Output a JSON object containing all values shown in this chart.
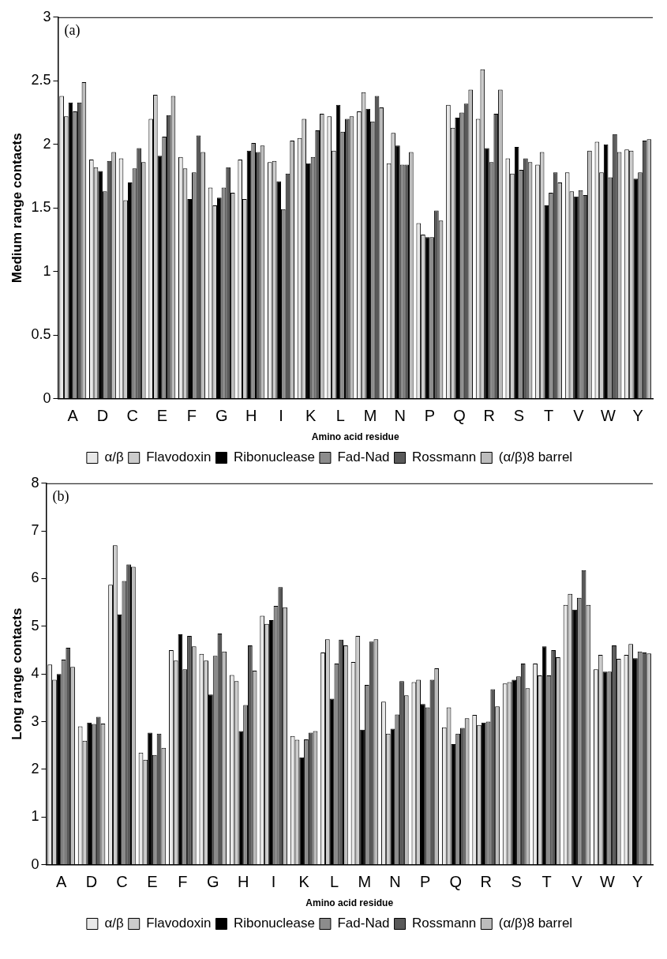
{
  "chart_data": [
    {
      "type": "bar",
      "xlabel": "Amino acid residue",
      "ylabel": "Medium range contacts",
      "annotations": [
        "(a)"
      ],
      "categories": [
        "A",
        "D",
        "C",
        "E",
        "F",
        "G",
        "H",
        "I",
        "K",
        "L",
        "M",
        "N",
        "P",
        "Q",
        "R",
        "S",
        "T",
        "V",
        "W",
        "Y"
      ],
      "ylim": [
        0,
        3
      ],
      "yticks": [
        0,
        0.5,
        1,
        1.5,
        2,
        2.5,
        3
      ],
      "grid": false,
      "legend": "bottom",
      "series": [
        {
          "name": "α/β",
          "color": "#e8e8e8",
          "values": [
            2.38,
            1.88,
            1.89,
            2.2,
            1.9,
            1.66,
            1.88,
            1.86,
            2.05,
            2.22,
            2.26,
            1.85,
            1.38,
            2.31,
            2.2,
            1.89,
            1.84,
            1.78,
            2.02,
            1.96
          ]
        },
        {
          "name": "Flavodoxin",
          "color": "#cccccc",
          "values": [
            2.22,
            1.82,
            1.56,
            2.39,
            1.81,
            1.52,
            1.57,
            1.87,
            2.2,
            1.95,
            2.41,
            2.09,
            1.29,
            2.13,
            2.59,
            1.77,
            1.94,
            1.63,
            1.78,
            1.95
          ]
        },
        {
          "name": "Ribonuclease",
          "color": "#000000",
          "values": [
            2.33,
            1.79,
            1.7,
            1.91,
            1.57,
            1.58,
            1.95,
            1.71,
            1.85,
            2.31,
            2.28,
            1.99,
            1.27,
            2.21,
            1.97,
            1.98,
            1.52,
            1.59,
            2.0,
            1.73
          ]
        },
        {
          "name": "Fad-Nad",
          "color": "#8c8c8c",
          "values": [
            2.26,
            1.63,
            1.81,
            2.06,
            1.78,
            1.66,
            2.01,
            1.49,
            1.9,
            2.1,
            2.18,
            1.84,
            1.27,
            2.25,
            1.86,
            1.8,
            1.62,
            1.64,
            1.74,
            1.78
          ]
        },
        {
          "name": "Rossmann",
          "color": "#595959",
          "values": [
            2.33,
            1.87,
            1.97,
            2.23,
            2.07,
            1.82,
            1.94,
            1.77,
            2.11,
            2.2,
            2.38,
            1.84,
            1.48,
            2.32,
            2.24,
            1.89,
            1.78,
            1.6,
            2.08,
            2.03
          ]
        },
        {
          "name": "(α/β)8 barrel",
          "color": "#bdbdbd",
          "values": [
            2.49,
            1.94,
            1.86,
            2.38,
            1.94,
            1.62,
            1.99,
            2.03,
            2.24,
            2.22,
            2.29,
            1.94,
            1.4,
            2.43,
            2.43,
            1.86,
            1.7,
            1.95,
            1.94,
            2.04
          ]
        }
      ]
    },
    {
      "type": "bar",
      "xlabel": "Amino acid residue",
      "ylabel": "Long range contacts",
      "annotations": [
        "(b)"
      ],
      "categories": [
        "A",
        "D",
        "C",
        "E",
        "F",
        "G",
        "H",
        "I",
        "K",
        "L",
        "M",
        "N",
        "P",
        "Q",
        "R",
        "S",
        "T",
        "V",
        "W",
        "Y"
      ],
      "ylim": [
        0,
        8
      ],
      "yticks": [
        0,
        1,
        2,
        3,
        4,
        5,
        6,
        7,
        8
      ],
      "grid": false,
      "legend": "bottom",
      "series": [
        {
          "name": "α/β",
          "color": "#e8e8e8",
          "values": [
            4.2,
            2.9,
            5.87,
            2.35,
            4.5,
            4.42,
            3.98,
            5.22,
            2.7,
            4.45,
            4.25,
            3.42,
            3.83,
            2.88,
            3.14,
            3.8,
            4.22,
            5.45,
            4.1,
            4.4
          ]
        },
        {
          "name": "Flavodoxin",
          "color": "#cccccc",
          "values": [
            3.88,
            2.6,
            6.7,
            2.2,
            4.28,
            4.28,
            3.85,
            5.05,
            2.62,
            4.73,
            4.8,
            2.75,
            3.88,
            3.3,
            2.93,
            3.83,
            3.97,
            5.68,
            4.4,
            4.63
          ]
        },
        {
          "name": "Ribonuclease",
          "color": "#000000",
          "values": [
            4.0,
            2.98,
            5.25,
            2.77,
            4.83,
            3.57,
            2.8,
            5.13,
            2.25,
            3.48,
            2.83,
            2.85,
            3.37,
            2.53,
            2.98,
            3.88,
            4.58,
            5.35,
            4.05,
            4.33
          ]
        },
        {
          "name": "Fad-Nad",
          "color": "#8c8c8c",
          "values": [
            4.3,
            2.95,
            5.95,
            2.3,
            4.1,
            4.38,
            3.35,
            5.43,
            2.63,
            4.22,
            3.77,
            3.15,
            3.3,
            2.75,
            3.0,
            3.95,
            3.97,
            5.6,
            4.05,
            4.47
          ]
        },
        {
          "name": "Rossmann",
          "color": "#595959",
          "values": [
            4.55,
            3.1,
            6.3,
            2.75,
            4.8,
            4.85,
            4.6,
            5.82,
            2.77,
            4.72,
            4.68,
            3.85,
            3.88,
            2.87,
            3.68,
            4.22,
            4.5,
            6.18,
            4.6,
            4.45
          ]
        },
        {
          "name": "(α/β)8 barrel",
          "color": "#bdbdbd",
          "values": [
            4.15,
            2.96,
            6.25,
            2.45,
            4.58,
            4.47,
            4.07,
            5.4,
            2.8,
            4.6,
            4.73,
            3.55,
            4.12,
            3.07,
            3.32,
            3.7,
            4.35,
            5.45,
            4.32,
            4.43
          ]
        }
      ]
    }
  ]
}
